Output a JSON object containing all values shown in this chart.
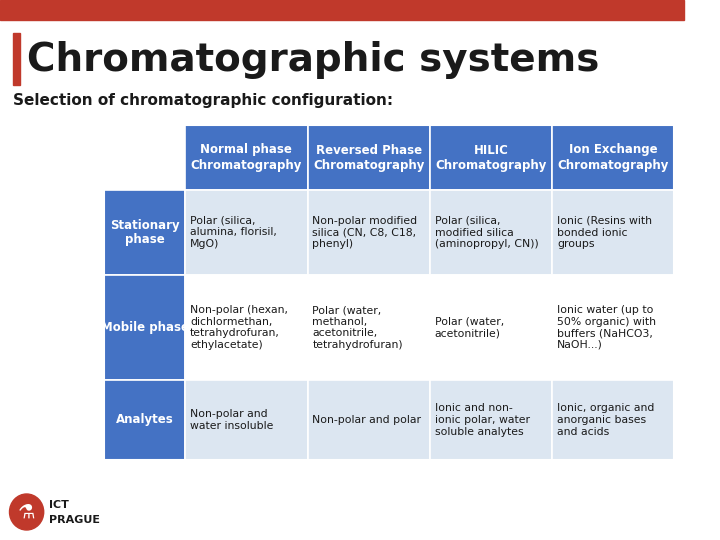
{
  "title": "Chromatographic systems",
  "subtitle": "Selection of chromatographic configuration:",
  "top_bar_color": "#c0392b",
  "title_accent_color": "#c0392b",
  "background_color": "#ffffff",
  "header_bg_color": "#4472c4",
  "header_text_color": "#ffffff",
  "row_label_bg_color": "#4472c4",
  "row_label_text_color": "#ffffff",
  "cell_bg_even": "#dce6f1",
  "cell_bg_odd": "#ffffff",
  "col_headers": [
    "Normal phase\nChromatography",
    "Reversed Phase\nChromatography",
    "HILIC\nChromatography",
    "Ion Exchange\nChromatography"
  ],
  "row_labels": [
    "Stationary\nphase",
    "Mobile phase",
    "Analytes"
  ],
  "cells": [
    [
      "Polar (silica,\nalumina, florisil,\nMgO)",
      "Non-polar modified\nsilica (CN, C8, C18,\nphenyl)",
      "Polar (silica,\nmodified silica\n(aminopropyl, CN))",
      "Ionic (Resins with\nbonded ionic\ngroups"
    ],
    [
      "Non-polar (hexan,\ndichlormethan,\ntetrahydrofuran,\nethylacetate)",
      "Polar (water,\nmethanol,\nacetonitrile,\ntetrahydrofuran)",
      "Polar (water,\nacetonitrile)",
      "Ionic water (up to\n50% organic) with\nbuffers (NaHCO3,\nNaOH...)"
    ],
    [
      "Non-polar and\nwater insoluble",
      "Non-polar and polar",
      "Ionic and non-\nionic polar, water\nsoluble analytes",
      "Ionic, organic and\nanorganic bases\nand acids"
    ]
  ],
  "footer_logo_color": "#c0392b",
  "footer_text": "ICT\nPRAGUE"
}
